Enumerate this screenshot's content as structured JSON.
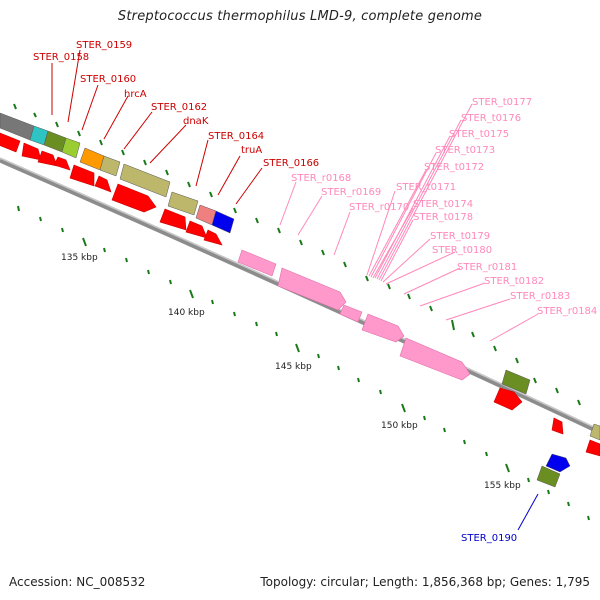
{
  "title": "Streptococcus thermophilus LMD-9, complete genome",
  "footer": {
    "accession": "Accession: NC_008532",
    "summary": "Topology: circular; Length: 1,856,368 bp; Genes: 1,795"
  },
  "colors": {
    "backbone": "#8c8c8c",
    "tick": "#1a7a1a",
    "red_gene": "#ff0000",
    "pink_gene": "#ff99cc",
    "label_red": "#cc0000",
    "label_pink": "#ff88bb",
    "label_blue": "#0000cc"
  },
  "scale_labels": [
    "135 kbp",
    "140 kbp",
    "145 kbp",
    "150 kbp",
    "155 kbp"
  ],
  "gene_labels": {
    "red": [
      "STER_0158",
      "STER_0159",
      "STER_0160",
      "hrcA",
      "STER_0162",
      "dnaK",
      "STER_0164",
      "truA",
      "STER_0166"
    ],
    "pink": [
      "STER_r0168",
      "STER_r0169",
      "STER_r0170",
      "STER_t0171",
      "STER_t0172",
      "STER_t0173",
      "STER_t0174",
      "STER_t0175",
      "STER_t0176",
      "STER_t0177",
      "STER_t0178",
      "STER_t0179",
      "STER_t0180",
      "STER_r0181",
      "STER_t0182",
      "STER_r0183",
      "STER_r0184"
    ],
    "blue": [
      "STER_0190"
    ]
  }
}
